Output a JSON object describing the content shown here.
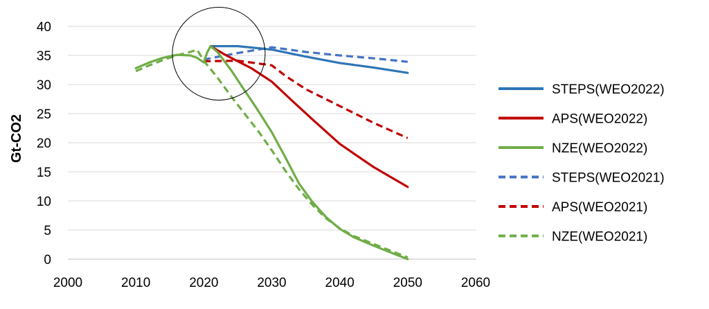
{
  "chart_data": {
    "type": "line",
    "title": "",
    "xlabel": "",
    "ylabel": "Gt-CO2",
    "xlim": [
      2000,
      2060
    ],
    "ylim": [
      0,
      40
    ],
    "xticks": [
      2000,
      2010,
      2020,
      2030,
      2040,
      2050,
      2060
    ],
    "yticks": [
      0,
      5,
      10,
      15,
      20,
      25,
      30,
      35,
      40
    ],
    "grid": "horizontal",
    "legend_position": "right",
    "annotation": "circle around 2020 peak",
    "series": [
      {
        "name": "STEPS(WEO2022)",
        "color": "#2E75B6",
        "dash": false,
        "points": [
          [
            2021,
            36.6
          ],
          [
            2025,
            36.6
          ],
          [
            2030,
            36.0
          ],
          [
            2035,
            34.8
          ],
          [
            2040,
            33.7
          ],
          [
            2045,
            32.9
          ],
          [
            2050,
            32.0
          ]
        ]
      },
      {
        "name": "APS(WEO2022)",
        "color": "#C00000",
        "dash": false,
        "points": [
          [
            2021,
            36.6
          ],
          [
            2023,
            35.2
          ],
          [
            2025,
            34.0
          ],
          [
            2027,
            32.8
          ],
          [
            2030,
            30.5
          ],
          [
            2033,
            27.2
          ],
          [
            2036,
            24.0
          ],
          [
            2040,
            19.8
          ],
          [
            2045,
            15.8
          ],
          [
            2050,
            12.4
          ]
        ]
      },
      {
        "name": "NZE(WEO2022)",
        "color": "#70AD47",
        "dash": false,
        "points": [
          [
            2010,
            32.8
          ],
          [
            2012,
            33.8
          ],
          [
            2014,
            34.6
          ],
          [
            2016,
            35.1
          ],
          [
            2018,
            35.0
          ],
          [
            2019,
            34.6
          ],
          [
            2020,
            33.8
          ],
          [
            2020.5,
            35.5
          ],
          [
            2021,
            36.6
          ],
          [
            2022,
            35.6
          ],
          [
            2024,
            32.5
          ],
          [
            2026,
            29.0
          ],
          [
            2028,
            25.5
          ],
          [
            2030,
            21.8
          ],
          [
            2032,
            17.5
          ],
          [
            2034,
            13.0
          ],
          [
            2036,
            9.8
          ],
          [
            2038,
            7.2
          ],
          [
            2040,
            5.2
          ],
          [
            2042,
            3.8
          ],
          [
            2045,
            2.3
          ],
          [
            2048,
            0.9
          ],
          [
            2050,
            0.0
          ]
        ]
      },
      {
        "name": "STEPS(WEO2021)",
        "color": "#4472C4",
        "dash": true,
        "points": [
          [
            2020,
            34.3
          ],
          [
            2025,
            35.4
          ],
          [
            2030,
            36.4
          ],
          [
            2035,
            35.6
          ],
          [
            2040,
            35.0
          ],
          [
            2045,
            34.5
          ],
          [
            2050,
            33.9
          ]
        ]
      },
      {
        "name": "APS(WEO2021)",
        "color": "#C00000",
        "dash": true,
        "points": [
          [
            2020,
            34.0
          ],
          [
            2025,
            34.1
          ],
          [
            2030,
            33.3
          ],
          [
            2032,
            31.5
          ],
          [
            2035,
            29.2
          ],
          [
            2040,
            26.3
          ],
          [
            2045,
            23.4
          ],
          [
            2050,
            20.8
          ]
        ]
      },
      {
        "name": "NZE(WEO2021)",
        "color": "#70AD47",
        "dash": true,
        "points": [
          [
            2010,
            32.3
          ],
          [
            2012,
            33.3
          ],
          [
            2014,
            34.2
          ],
          [
            2016,
            35.0
          ],
          [
            2018,
            35.6
          ],
          [
            2019,
            36.0
          ],
          [
            2020,
            34.1
          ],
          [
            2022,
            31.2
          ],
          [
            2024,
            28.0
          ],
          [
            2026,
            25.0
          ],
          [
            2028,
            22.0
          ],
          [
            2030,
            18.7
          ],
          [
            2032,
            15.2
          ],
          [
            2034,
            12.0
          ],
          [
            2036,
            9.3
          ],
          [
            2038,
            7.0
          ],
          [
            2040,
            5.3
          ],
          [
            2042,
            4.0
          ],
          [
            2045,
            2.6
          ],
          [
            2048,
            1.2
          ],
          [
            2050,
            0.3
          ]
        ]
      }
    ]
  }
}
